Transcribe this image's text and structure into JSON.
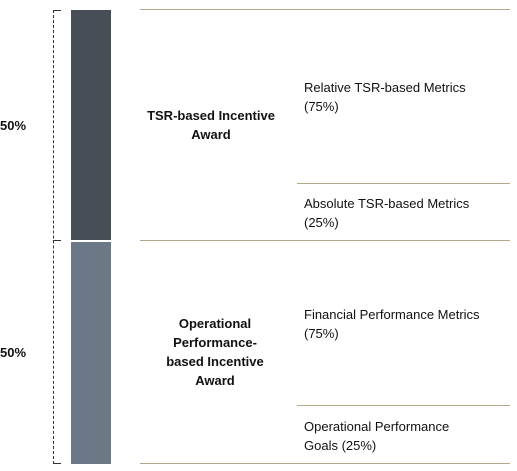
{
  "segments": [
    {
      "percent": "50%",
      "award_label": "TSR-based Incentive Award",
      "color": "#474e56",
      "metrics": [
        {
          "label": "Relative TSR-based Metrics (75%)"
        },
        {
          "label": "Absolute TSR-based Metrics (25%)"
        }
      ]
    },
    {
      "percent": "50%",
      "award_label": "Operational Performance-based Incentive Award",
      "color": "#6d7886",
      "metrics": [
        {
          "label": "Financial Performance Metrics (75%)"
        },
        {
          "label": "Operational Performance Goals (25%)"
        }
      ]
    }
  ],
  "colors": {
    "divider": "#b5a78a",
    "bracket": "#333333"
  }
}
